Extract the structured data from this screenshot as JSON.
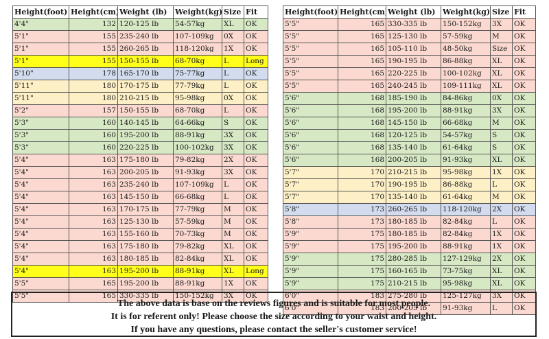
{
  "headers": [
    "Height(foot)",
    "Height(cm)",
    "Weight (lb)",
    "Weight(kg)",
    "Size",
    "Fit"
  ],
  "colors": {
    "green": "#d7e8c4",
    "pink": "#fbd9d0",
    "blue": "#d3dcee",
    "cream": "#fdf0c6",
    "yellow": "#ffff1a"
  },
  "left_table": [
    {
      "foot": "4'4\"",
      "cm": "132",
      "lb": "120-125 lb",
      "kg": "54-57kg",
      "size": "XL",
      "fit": "OK",
      "color": "green"
    },
    {
      "foot": "5'1\"",
      "cm": "155",
      "lb": "235-240 lb",
      "kg": "107-109kg",
      "size": "0X",
      "fit": "OK",
      "color": "pink"
    },
    {
      "foot": "5'1\"",
      "cm": "155",
      "lb": "260-265 lb",
      "kg": "118-120kg",
      "size": "1X",
      "fit": "OK",
      "color": "pink"
    },
    {
      "foot": "5'1\"",
      "cm": "155",
      "lb": "150-155 lb",
      "kg": "68-70kg",
      "size": "L",
      "fit": "Long",
      "color": "yellow"
    },
    {
      "foot": "5'10\"",
      "cm": "178",
      "lb": "165-170 lb",
      "kg": "75-77kg",
      "size": "L",
      "fit": "OK",
      "color": "blue"
    },
    {
      "foot": "5'11\"",
      "cm": "180",
      "lb": "170-175 lb",
      "kg": "77-79kg",
      "size": "L",
      "fit": "OK",
      "color": "cream"
    },
    {
      "foot": "5'11\"",
      "cm": "180",
      "lb": "210-215 lb",
      "kg": "95-98kg",
      "size": "0X",
      "fit": "OK",
      "color": "cream"
    },
    {
      "foot": "5'2\"",
      "cm": "157",
      "lb": "150-155 lb",
      "kg": "68-70kg",
      "size": "L",
      "fit": "OK",
      "color": "pink"
    },
    {
      "foot": "5'3\"",
      "cm": "160",
      "lb": "140-145 lb",
      "kg": "64-66kg",
      "size": "S",
      "fit": "OK",
      "color": "green"
    },
    {
      "foot": "5'3\"",
      "cm": "160",
      "lb": "195-200 lb",
      "kg": "88-91kg",
      "size": "3X",
      "fit": "OK",
      "color": "green"
    },
    {
      "foot": "5'3\"",
      "cm": "160",
      "lb": "220-225 lb",
      "kg": "100-102kg",
      "size": "3X",
      "fit": "OK",
      "color": "green"
    },
    {
      "foot": "5'4\"",
      "cm": "163",
      "lb": "175-180 lb",
      "kg": "79-82kg",
      "size": "2X",
      "fit": "OK",
      "color": "pink"
    },
    {
      "foot": "5'4\"",
      "cm": "163",
      "lb": "200-205 lb",
      "kg": "91-93kg",
      "size": "3X",
      "fit": "OK",
      "color": "pink"
    },
    {
      "foot": "5'4\"",
      "cm": "163",
      "lb": "235-240 lb",
      "kg": "107-109kg",
      "size": "L",
      "fit": "OK",
      "color": "pink"
    },
    {
      "foot": "5'4\"",
      "cm": "163",
      "lb": "145-150 lb",
      "kg": "66-68kg",
      "size": "L",
      "fit": "OK",
      "color": "pink"
    },
    {
      "foot": "5'4\"",
      "cm": "163",
      "lb": "170-175 lb",
      "kg": "77-79kg",
      "size": "M",
      "fit": "OK",
      "color": "pink"
    },
    {
      "foot": "5'4\"",
      "cm": "163",
      "lb": "125-130 lb",
      "kg": "57-59kg",
      "size": "M",
      "fit": "OK",
      "color": "pink"
    },
    {
      "foot": "5'4\"",
      "cm": "163",
      "lb": "155-160 lb",
      "kg": "70-73kg",
      "size": "M",
      "fit": "OK",
      "color": "pink"
    },
    {
      "foot": "5'4\"",
      "cm": "163",
      "lb": "175-180 lb",
      "kg": "79-82kg",
      "size": "XL",
      "fit": "OK",
      "color": "pink"
    },
    {
      "foot": "5'4\"",
      "cm": "163",
      "lb": "180-185 lb",
      "kg": "82-84kg",
      "size": "XL",
      "fit": "OK",
      "color": "pink"
    },
    {
      "foot": "5'4\"",
      "cm": "163",
      "lb": "195-200 lb",
      "kg": "88-91kg",
      "size": "XL",
      "fit": "Long",
      "color": "yellow"
    },
    {
      "foot": "5'5\"",
      "cm": "165",
      "lb": "195-200 lb",
      "kg": "88-91kg",
      "size": "1X",
      "fit": "OK",
      "color": "pink"
    },
    {
      "foot": "5'5\"",
      "cm": "165",
      "lb": "330-335 lb",
      "kg": "150-152kg",
      "size": "3X",
      "fit": "OK",
      "color": "pink"
    }
  ],
  "right_table": [
    {
      "foot": "5'5\"",
      "cm": "165",
      "lb": "330-335 lb",
      "kg": "150-152kg",
      "size": "3X",
      "fit": "OK",
      "color": "pink"
    },
    {
      "foot": "5'5\"",
      "cm": "165",
      "lb": "125-130 lb",
      "kg": "57-59kg",
      "size": "M",
      "fit": "OK",
      "color": "pink"
    },
    {
      "foot": "5'5\"",
      "cm": "165",
      "lb": "105-110 lb",
      "kg": "48-50kg",
      "size": "Size",
      "fit": "OK",
      "color": "pink"
    },
    {
      "foot": "5'5\"",
      "cm": "165",
      "lb": "190-195 lb",
      "kg": "86-88kg",
      "size": "XL",
      "fit": "OK",
      "color": "pink"
    },
    {
      "foot": "5'5\"",
      "cm": "165",
      "lb": "220-225 lb",
      "kg": "100-102kg",
      "size": "XL",
      "fit": "OK",
      "color": "pink"
    },
    {
      "foot": "5'5\"",
      "cm": "165",
      "lb": "240-245 lb",
      "kg": "109-111kg",
      "size": "XL",
      "fit": "OK",
      "color": "pink"
    },
    {
      "foot": "5'6\"",
      "cm": "168",
      "lb": "185-190 lb",
      "kg": "84-86kg",
      "size": "0X",
      "fit": "OK",
      "color": "green"
    },
    {
      "foot": "5'6\"",
      "cm": "168",
      "lb": "195-200 lb",
      "kg": "88-91kg",
      "size": "3X",
      "fit": "OK",
      "color": "green"
    },
    {
      "foot": "5'6\"",
      "cm": "168",
      "lb": "145-150 lb",
      "kg": "66-68kg",
      "size": "M",
      "fit": "OK",
      "color": "green"
    },
    {
      "foot": "5'6\"",
      "cm": "168",
      "lb": "120-125 lb",
      "kg": "54-57kg",
      "size": "S",
      "fit": "OK",
      "color": "green"
    },
    {
      "foot": "5'6\"",
      "cm": "168",
      "lb": "135-140 lb",
      "kg": "61-64kg",
      "size": "S",
      "fit": "OK",
      "color": "green"
    },
    {
      "foot": "5'6\"",
      "cm": "168",
      "lb": "200-205 lb",
      "kg": "91-93kg",
      "size": "XL",
      "fit": "OK",
      "color": "green"
    },
    {
      "foot": "5'7\"",
      "cm": "170",
      "lb": "210-215 lb",
      "kg": "95-98kg",
      "size": "1X",
      "fit": "OK",
      "color": "cream"
    },
    {
      "foot": "5'7\"",
      "cm": "170",
      "lb": "190-195 lb",
      "kg": "86-88kg",
      "size": "L",
      "fit": "OK",
      "color": "cream"
    },
    {
      "foot": "5'7\"",
      "cm": "170",
      "lb": "135-140 lb",
      "kg": "61-64kg",
      "size": "M",
      "fit": "OK",
      "color": "cream"
    },
    {
      "foot": "5'8\"",
      "cm": "173",
      "lb": "260-265 lb",
      "kg": "118-120kg",
      "size": "2X",
      "fit": "OK",
      "color": "blue"
    },
    {
      "foot": "5'8\"",
      "cm": "173",
      "lb": "180-185 lb",
      "kg": "82-84kg",
      "size": "L",
      "fit": "OK",
      "color": "pink"
    },
    {
      "foot": "5'9\"",
      "cm": "175",
      "lb": "180-185 lb",
      "kg": "82-84kg",
      "size": "1X",
      "fit": "OK",
      "color": "pink"
    },
    {
      "foot": "5'9\"",
      "cm": "175",
      "lb": "195-200 lb",
      "kg": "88-91kg",
      "size": "1X",
      "fit": "OK",
      "color": "pink"
    },
    {
      "foot": "5'9\"",
      "cm": "175",
      "lb": "280-285 lb",
      "kg": "127-129kg",
      "size": "2X",
      "fit": "OK",
      "color": "green"
    },
    {
      "foot": "5'9\"",
      "cm": "175",
      "lb": "160-165 lb",
      "kg": "73-75kg",
      "size": "XL",
      "fit": "OK",
      "color": "green"
    },
    {
      "foot": "5'9\"",
      "cm": "175",
      "lb": "210-215 lb",
      "kg": "95-98kg",
      "size": "XL",
      "fit": "OK",
      "color": "green"
    },
    {
      "foot": "6'0\"",
      "cm": "183",
      "lb": "275-280 lb",
      "kg": "125-127kg",
      "size": "3X",
      "fit": "OK",
      "color": "pink"
    },
    {
      "foot": "6'0\"",
      "cm": "183",
      "lb": "200-205 lb",
      "kg": "91-93kg",
      "size": "L",
      "fit": "OK",
      "color": "pink"
    }
  ],
  "notice": {
    "line1": "The above data is base on the reviews figures and is suitable for most people.",
    "line2": "It is for referent only! Please choose the size according to your waist and height.",
    "line3": "If you have any questions, please contact the seller's customer service!"
  }
}
